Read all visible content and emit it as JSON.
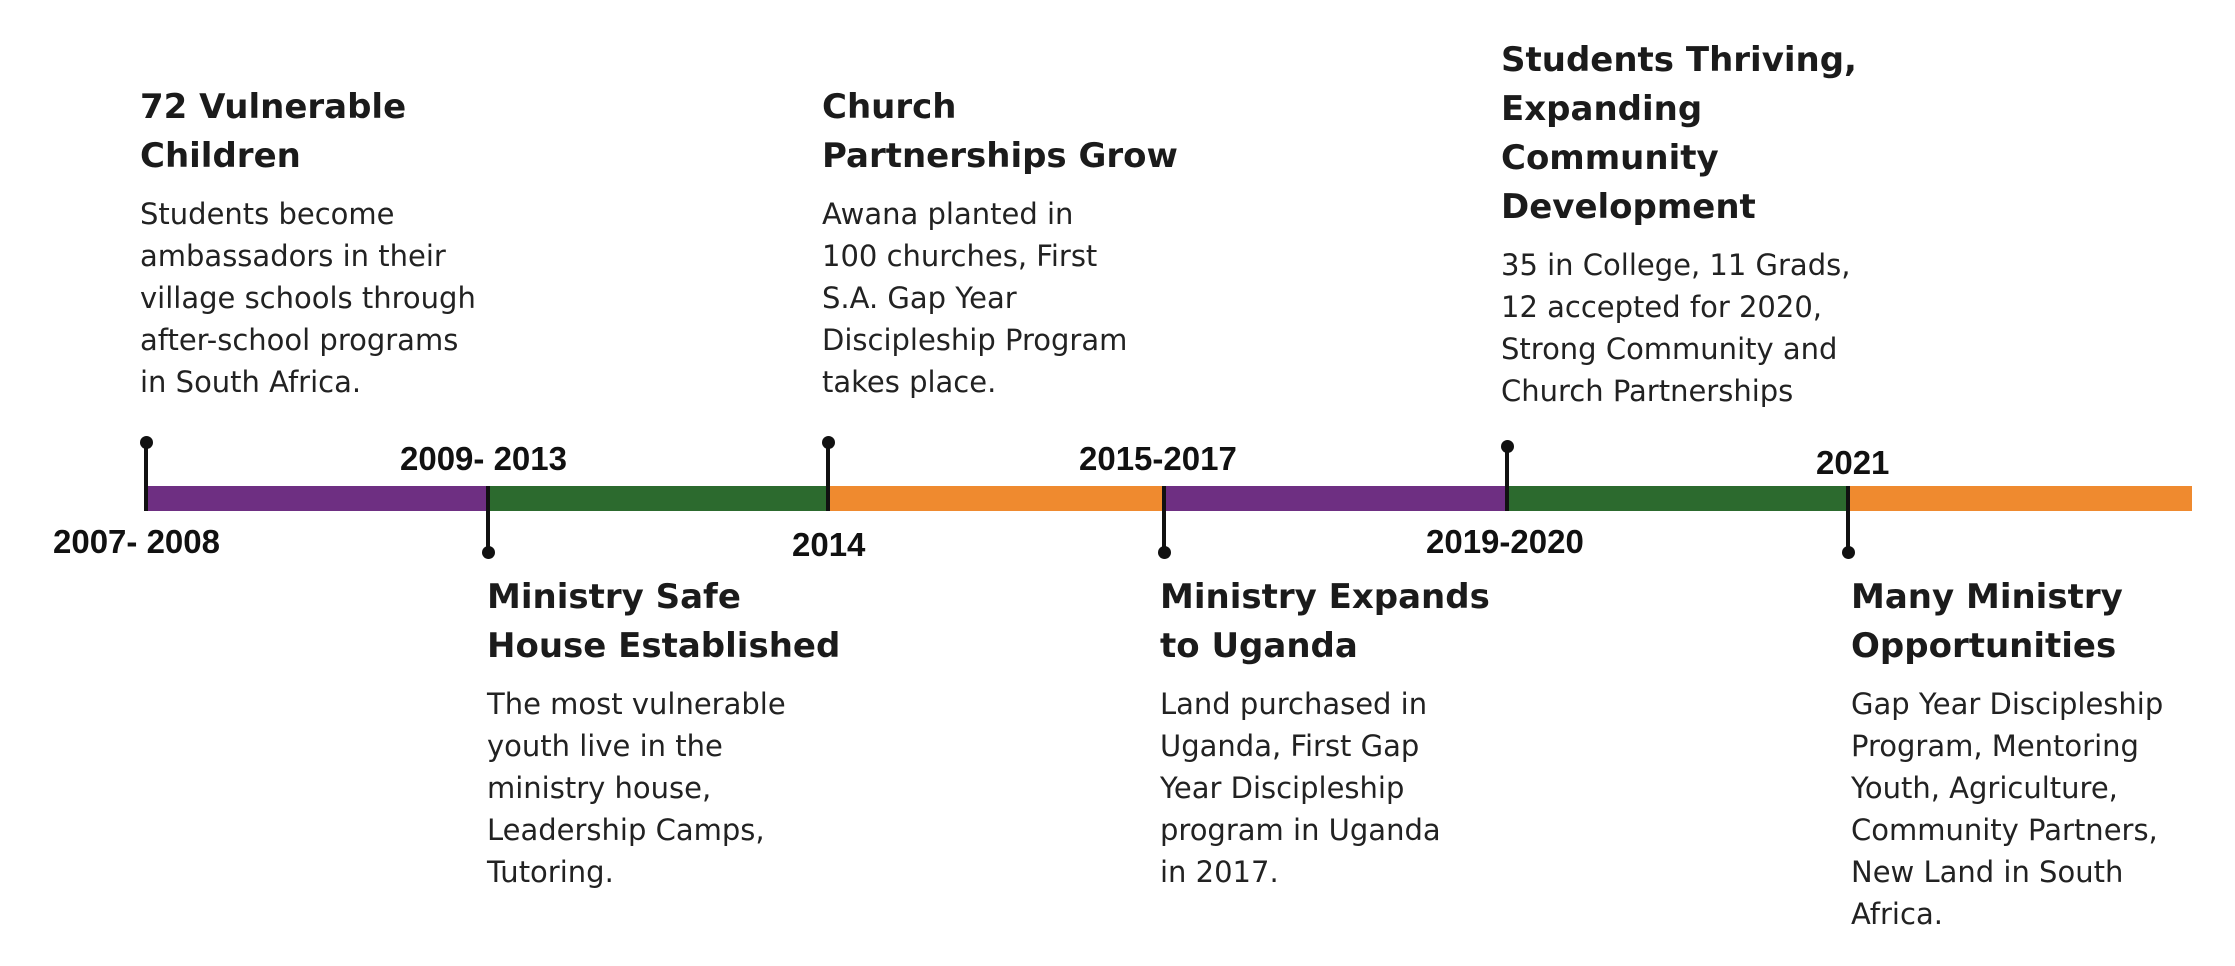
{
  "colors": {
    "purple": "#6e2f82",
    "green": "#2c6a2e",
    "orange": "#ef8a2f"
  },
  "years": {
    "y2007": "2007- 2008",
    "y2009": "2009- 2013",
    "y2014": "2014",
    "y2015": "2015-2017",
    "y2019": "2019-2020",
    "y2021": "2021"
  },
  "events": {
    "e2007": {
      "title": "72 Vulnerable\nChildren",
      "desc": "Students become\nambassadors in their\nvillage schools through\nafter-school programs\nin South Africa."
    },
    "e2009": {
      "title": "Ministry Safe\nHouse Established",
      "desc": "The most  vulnerable\nyouth  live in the\nministry house,\nLeadership Camps,\nTutoring."
    },
    "e2014": {
      "title": "Church\nPartnerships Grow",
      "desc": "Awana planted in\n100 churches, First\nS.A. Gap Year\nDiscipleship Program\ntakes place."
    },
    "e2015": {
      "title": "Ministry Expands\nto Uganda",
      "desc": "Land purchased in\nUganda, First Gap\nYear Discipleship\nprogram in Uganda\nin 2017."
    },
    "e2019": {
      "title": "Students Thriving,\nExpanding\nCommunity\nDevelopment",
      "desc": "35 in College, 11 Grads,\n12 accepted for 2020,\nStrong Community and\nChurch Partnerships"
    },
    "e2021": {
      "title": "Many Ministry\nOpportunities",
      "desc": "Gap Year Discipleship\nProgram, Mentoring\nYouth,  Agriculture,\nCommunity Partners,\nNew Land in South\nAfrica."
    }
  }
}
